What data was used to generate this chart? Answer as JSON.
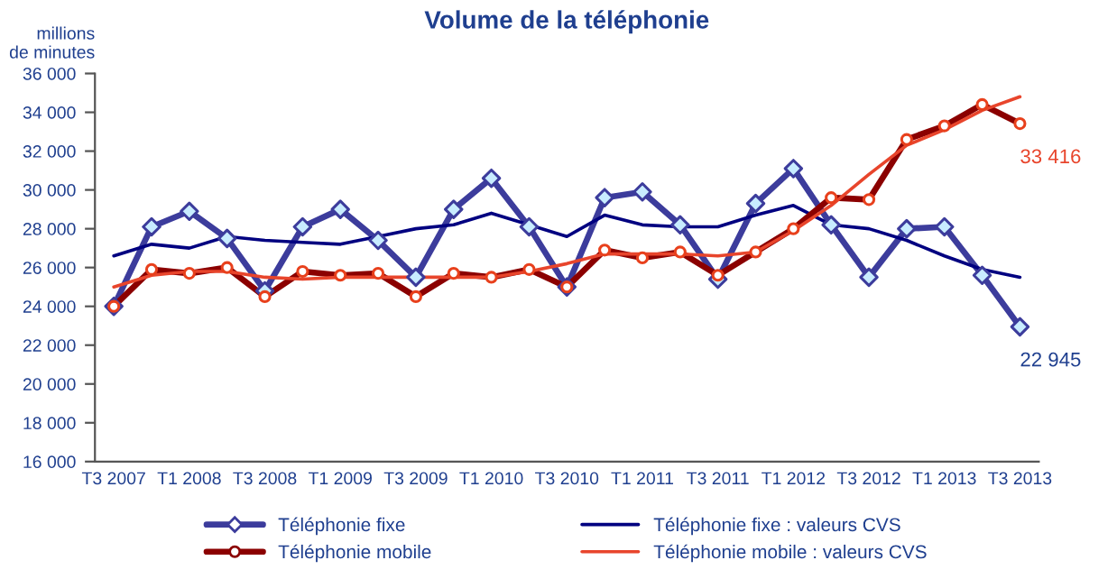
{
  "chart_data": {
    "type": "line",
    "title": "Volume de la téléphonie",
    "ylabel": "millions\nde minutes",
    "categories": [
      "T3 2007",
      null,
      "T1 2008",
      null,
      "T3 2008",
      null,
      "T1 2009",
      null,
      "T3 2009",
      null,
      "T1 2010",
      null,
      "T3 2010",
      null,
      "T1 2011",
      null,
      "T3 2011",
      null,
      "T1 2012",
      null,
      "T3 2012",
      null,
      "T1 2013",
      null,
      "T3 2013"
    ],
    "series": [
      {
        "name": "Téléphonie fixe",
        "color": "#3c3c9c",
        "marker": "diamond",
        "values": [
          24000,
          28100,
          28900,
          27500,
          24800,
          28100,
          29000,
          27400,
          25500,
          29000,
          30600,
          28100,
          25000,
          29600,
          29900,
          28200,
          25400,
          29300,
          31100,
          28200,
          25500,
          28000,
          28100,
          25600,
          22945
        ]
      },
      {
        "name": "Téléphonie fixe : valeurs CVS",
        "color": "#000080",
        "marker": "none",
        "values": [
          26600,
          27200,
          27000,
          27600,
          27400,
          27300,
          27200,
          27600,
          28000,
          28200,
          28800,
          28200,
          27600,
          28700,
          28200,
          28100,
          28100,
          28700,
          29200,
          28200,
          28000,
          27400,
          26600,
          25900,
          25500
        ]
      },
      {
        "name": "Téléphonie mobile",
        "color": "#8b0000",
        "marker": "circle",
        "values": [
          24000,
          25900,
          25700,
          26000,
          24500,
          25800,
          25600,
          25700,
          24500,
          25700,
          25500,
          25900,
          25000,
          26900,
          26500,
          26800,
          25600,
          26800,
          28000,
          29600,
          29500,
          32600,
          33300,
          34400,
          33416
        ]
      },
      {
        "name": "Téléphonie mobile : valeurs CVS",
        "color": "#e8452c",
        "marker": "none",
        "values": [
          25000,
          25600,
          25800,
          25800,
          25500,
          25400,
          25500,
          25500,
          25500,
          25500,
          25500,
          25800,
          26200,
          26700,
          26700,
          26700,
          26600,
          26800,
          27900,
          29200,
          30800,
          32300,
          33100,
          34100,
          34800
        ]
      }
    ],
    "ylim": [
      16000,
      36000
    ],
    "yticks": [
      {
        "value": 16000,
        "label": "16 000"
      },
      {
        "value": 18000,
        "label": "18 000"
      },
      {
        "value": 20000,
        "label": "20 000"
      },
      {
        "value": 22000,
        "label": "22 000"
      },
      {
        "value": 24000,
        "label": "24 000"
      },
      {
        "value": 26000,
        "label": "26 000"
      },
      {
        "value": 28000,
        "label": "28 000"
      },
      {
        "value": 30000,
        "label": "30 000"
      },
      {
        "value": 32000,
        "label": "32 000"
      },
      {
        "value": 34000,
        "label": "34 000"
      },
      {
        "value": 36000,
        "label": "36 000"
      }
    ],
    "annotations": [
      {
        "text": "33 416",
        "x": "T3 2013",
        "y": 33416
      },
      {
        "text": "22 945",
        "x": "T3 2013",
        "y": 22945
      }
    ],
    "grid": false,
    "legend": "bottom"
  }
}
